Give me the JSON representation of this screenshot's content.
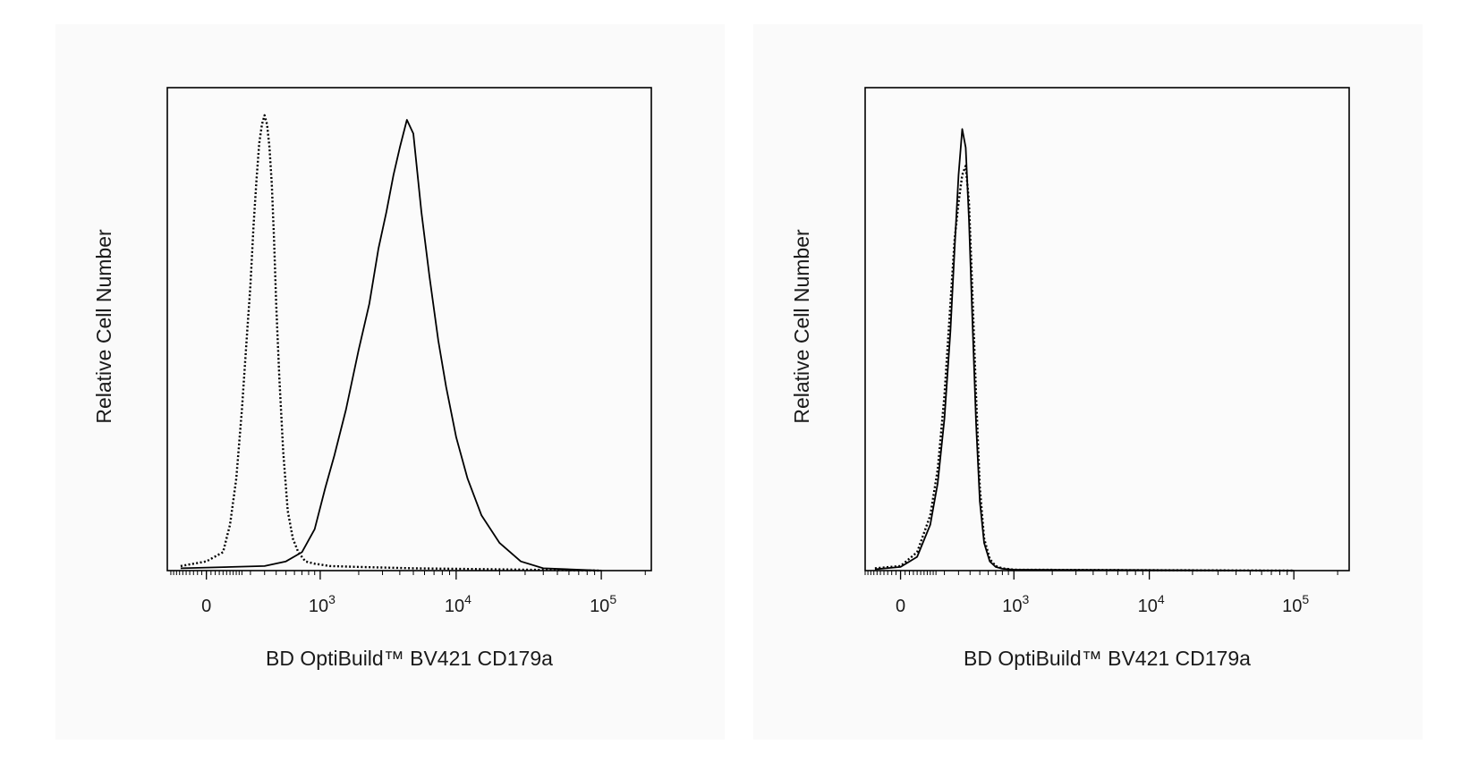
{
  "chart_data": [
    {
      "type": "line",
      "panel": "left",
      "title": "",
      "xlabel": "BD OptiBuild™ BV421 CD179a",
      "ylabel": "Relative Cell Number",
      "x_scale": "biexponential",
      "x_ticks": [
        {
          "value": "0",
          "label": "0"
        },
        {
          "value": 1000,
          "base": "10",
          "exp": "3"
        },
        {
          "value": 10000,
          "base": "10",
          "exp": "4"
        },
        {
          "value": 100000,
          "base": "10",
          "exp": "5"
        }
      ],
      "y_ticks": [],
      "grid": false,
      "series": [
        {
          "style": "dotted",
          "x": [
            -100,
            0,
            60,
            90,
            120,
            150,
            180,
            200,
            220,
            240,
            260,
            280,
            300,
            320,
            340,
            360,
            380,
            400,
            430,
            470,
            520,
            580,
            650,
            750,
            900,
            1200,
            2000,
            5000,
            100000
          ],
          "y": [
            1,
            2,
            4,
            10,
            20,
            35,
            52,
            62,
            75,
            85,
            93,
            97,
            99,
            97,
            92,
            84,
            72,
            58,
            42,
            26,
            13,
            7,
            4,
            2,
            1.5,
            1,
            0.8,
            0.5,
            0
          ]
        },
        {
          "style": "solid",
          "x": [
            -100,
            300,
            500,
            700,
            900,
            1100,
            1300,
            1600,
            2000,
            2400,
            2800,
            3200,
            3600,
            4000,
            4500,
            5000,
            5700,
            6500,
            7500,
            8500,
            10000,
            12000,
            15000,
            20000,
            28000,
            40000,
            100000
          ],
          "y": [
            0.5,
            1,
            2,
            4,
            9,
            18,
            25,
            35,
            48,
            58,
            70,
            78,
            86,
            92,
            98,
            95,
            78,
            64,
            50,
            40,
            29,
            20,
            12,
            6,
            2,
            0.5,
            0
          ]
        }
      ]
    },
    {
      "type": "line",
      "panel": "right",
      "title": "",
      "xlabel": "BD OptiBuild™ BV421 CD179a",
      "ylabel": "Relative Cell Number",
      "x_scale": "biexponential",
      "x_ticks": [
        {
          "value": "0",
          "label": "0"
        },
        {
          "value": 1000,
          "base": "10",
          "exp": "3"
        },
        {
          "value": 10000,
          "base": "10",
          "exp": "4"
        },
        {
          "value": 100000,
          "base": "10",
          "exp": "5"
        }
      ],
      "y_ticks": [],
      "grid": false,
      "series": [
        {
          "style": "dotted",
          "x": [
            -100,
            0,
            60,
            120,
            160,
            200,
            240,
            270,
            300,
            330,
            360,
            390,
            420,
            460,
            500,
            550,
            620,
            700,
            800,
            1000,
            100000
          ],
          "y": [
            0.5,
            1,
            4,
            12,
            22,
            38,
            58,
            72,
            80,
            86,
            88,
            80,
            62,
            38,
            18,
            7,
            2.5,
            1,
            0.5,
            0.2,
            0
          ]
        },
        {
          "style": "solid",
          "x": [
            -100,
            0,
            60,
            120,
            160,
            200,
            240,
            270,
            300,
            330,
            360,
            390,
            420,
            460,
            500,
            550,
            620,
            700,
            800,
            1000,
            100000
          ],
          "y": [
            0.3,
            0.8,
            3,
            10,
            19,
            33,
            52,
            70,
            86,
            96,
            92,
            76,
            56,
            32,
            15,
            6,
            2,
            0.8,
            0.4,
            0.2,
            0
          ]
        }
      ]
    }
  ]
}
